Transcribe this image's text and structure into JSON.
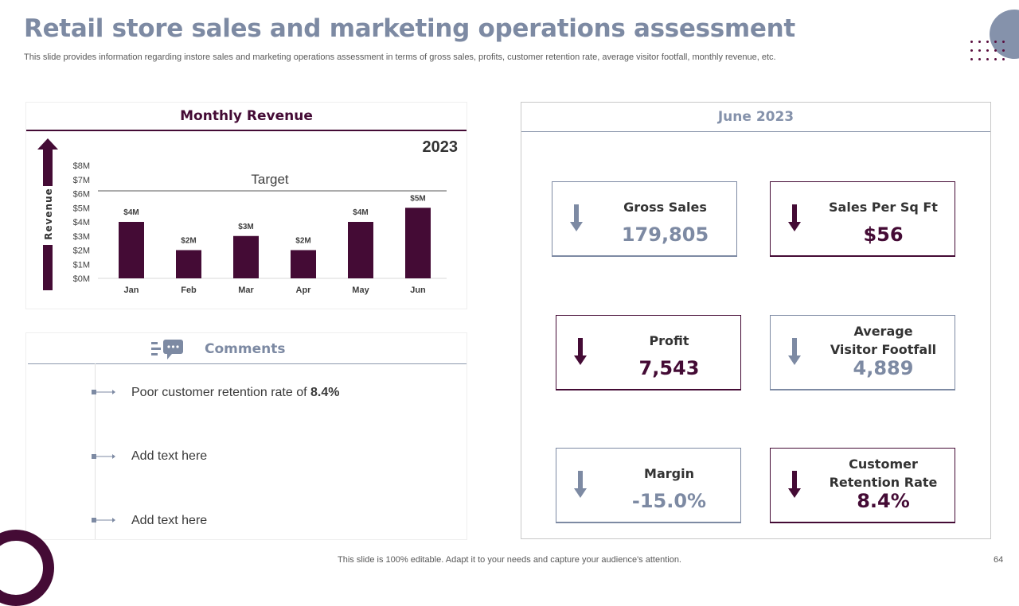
{
  "slide": {
    "title": "Retail store sales and marketing operations assessment",
    "subtitle": "This slide provides information regarding instore sales and marketing operations assessment in terms of gross sales, profits, customer retention rate, average visitor footfall, monthly revenue, etc.",
    "footer": "This slide is 100% editable. Adapt it to your needs and capture your audience's attention.",
    "page_number": "64"
  },
  "revenue_panel": {
    "title": "Monthly Revenue",
    "year": "2023",
    "axis_label": "Revenue",
    "target_label": "Target"
  },
  "chart_data": {
    "type": "bar",
    "title": "Monthly Revenue",
    "ylabel": "Revenue",
    "categories": [
      "Jan",
      "Feb",
      "Mar",
      "Apr",
      "May",
      "Jun"
    ],
    "values": [
      4,
      2,
      3,
      2,
      4,
      5
    ],
    "data_labels": [
      "$4M",
      "$2M",
      "$3M",
      "$2M",
      "$4M",
      "$5M"
    ],
    "y_ticks": [
      "$0M",
      "$1M",
      "$2M",
      "$3M",
      "$4M",
      "$5M",
      "$6M",
      "$7M",
      "$8M"
    ],
    "ylim": [
      0,
      8
    ],
    "target_value": 6.2,
    "bar_color": "#440b35",
    "legend": "none"
  },
  "comments": {
    "title": "Comments",
    "items": [
      {
        "text": "Poor customer retention rate of ",
        "bold": "8.4%"
      },
      {
        "text": "Add text here",
        "bold": ""
      },
      {
        "text": "Add text here",
        "bold": ""
      }
    ]
  },
  "kpi_panel": {
    "title": "June 2023",
    "cards": [
      {
        "label": "Gross Sales",
        "value": "179,805",
        "style": "gray",
        "icon": "arrow-down-icon"
      },
      {
        "label": "Sales Per Sq Ft",
        "value": "$56",
        "style": "dark",
        "icon": "arrow-down-icon"
      },
      {
        "label": "Profit",
        "value": "7,543",
        "style": "dark",
        "icon": "arrow-down-icon"
      },
      {
        "label": "Average Visitor Footfall",
        "label_line1": "Average",
        "label_line2": "Visitor Footfall",
        "value": "4,889",
        "style": "gray",
        "icon": "arrow-down-icon"
      },
      {
        "label": "Margin",
        "value": "-15.0%",
        "style": "gray",
        "icon": "arrow-down-icon"
      },
      {
        "label": "Customer Retention Rate",
        "label_line1": "Customer",
        "label_line2": "Retention Rate",
        "value": "8.4%",
        "style": "dark",
        "icon": "arrow-down-icon"
      }
    ]
  },
  "colors": {
    "accent_dark": "#440b35",
    "accent_gray": "#7d8aa3"
  }
}
